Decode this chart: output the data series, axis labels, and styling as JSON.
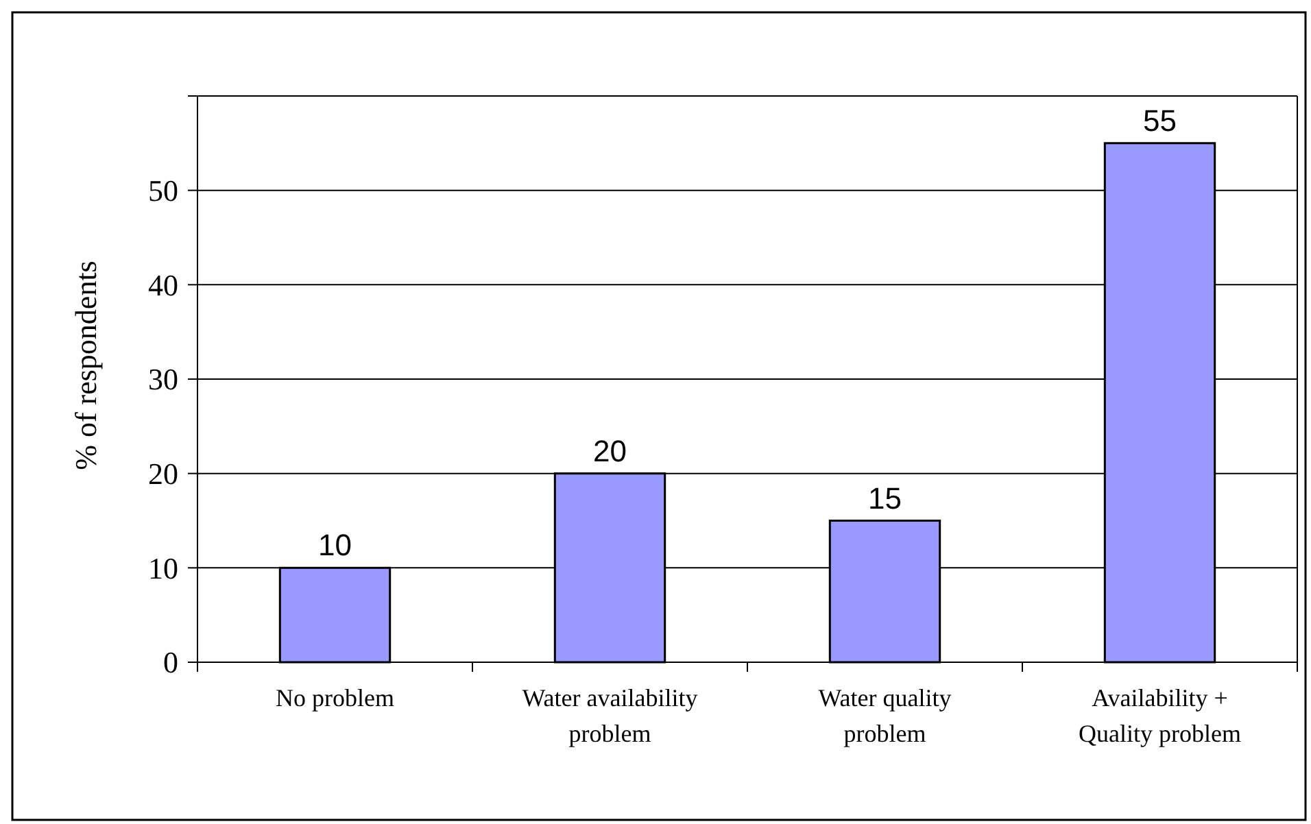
{
  "chart_data": {
    "type": "bar",
    "ylabel": "% of respondents",
    "categories": [
      "No problem",
      "Water availability problem",
      "Water quality problem",
      "Availability + Quality problem"
    ],
    "values": [
      10,
      20,
      15,
      55
    ],
    "color": "#9999ff",
    "ylim": [
      0,
      60
    ],
    "yticks": [
      0,
      10,
      20,
      30,
      40,
      50,
      {
        "value": 60,
        "label": null
      }
    ],
    "grid": "y",
    "data_labels": true
  }
}
